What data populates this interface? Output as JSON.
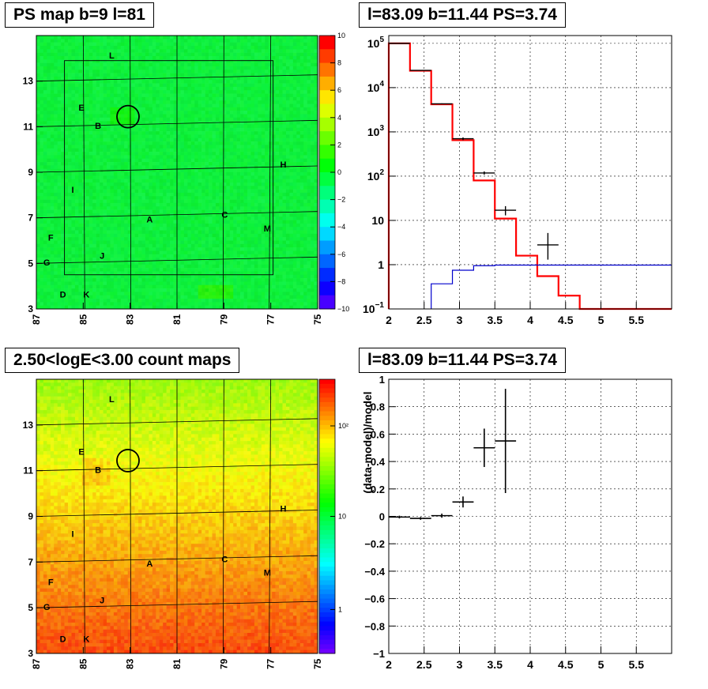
{
  "panels": {
    "p1_title": "PS map b=9 l=81",
    "p2_title": "l=83.09 b=11.44 PS=3.74",
    "p3_title": "2.50<logE<3.00 count maps",
    "p4_title": "l=83.09 b=11.44 PS=3.74"
  },
  "chart_data": [
    {
      "type": "heatmap",
      "title": "PS map b=9 l=81",
      "x_ticks": [
        "87",
        "85",
        "83",
        "81",
        "79",
        "77",
        "75"
      ],
      "y_ticks": [
        "3",
        "5",
        "7",
        "9",
        "11",
        "13"
      ],
      "xlim": [
        87,
        75
      ],
      "ylim": [
        3,
        15
      ],
      "colorbar_ticks": [
        "10",
        "8",
        "6",
        "4",
        "2",
        "0",
        "−2",
        "−4",
        "−6",
        "−8",
        "−10"
      ],
      "colorbar_range": [
        -10,
        10
      ],
      "typical_value": 0,
      "grid": true,
      "labels": [
        {
          "text": "L",
          "l": 83.9,
          "b": 14.0
        },
        {
          "text": "E",
          "l": 85.2,
          "b": 11.7
        },
        {
          "text": "B",
          "l": 84.5,
          "b": 10.9
        },
        {
          "text": "H",
          "l": 76.6,
          "b": 9.2
        },
        {
          "text": "I",
          "l": 85.5,
          "b": 8.1
        },
        {
          "text": "C",
          "l": 79.1,
          "b": 7.0
        },
        {
          "text": "A",
          "l": 82.3,
          "b": 6.8
        },
        {
          "text": "M",
          "l": 77.3,
          "b": 6.4
        },
        {
          "text": "F",
          "l": 86.5,
          "b": 6.0
        },
        {
          "text": "J",
          "l": 84.3,
          "b": 5.2
        },
        {
          "text": "G",
          "l": 86.7,
          "b": 4.9
        },
        {
          "text": "D",
          "l": 86.0,
          "b": 3.5
        },
        {
          "text": "K",
          "l": 85.0,
          "b": 3.5
        }
      ],
      "source_circle": {
        "l": 83.09,
        "b": 11.44
      }
    },
    {
      "type": "line",
      "title": "l=83.09 b=11.44 PS=3.74",
      "x_ticks": [
        "2",
        "2.5",
        "3",
        "3.5",
        "4",
        "4.5",
        "5",
        "5.5"
      ],
      "y_ticks": [
        "10^-1",
        "1",
        "10",
        "10^2",
        "10^3",
        "10^4",
        "10^5"
      ],
      "xlim": [
        2,
        6
      ],
      "ylim": [
        0.1,
        150000
      ],
      "yscale": "log",
      "grid": true,
      "series": [
        {
          "color": "#ff0000",
          "x": [
            2,
            2.3,
            2.6,
            2.9,
            3.2,
            3.5,
            3.8,
            4.1,
            4.4,
            4.7
          ],
          "values": [
            100000,
            24000,
            4200,
            650,
            80,
            11,
            1.6,
            0.55,
            0.2,
            0.1
          ],
          "step_end": 6
        },
        {
          "color": "#0000cc",
          "x": [
            2.6,
            2.9,
            3.2,
            3.5
          ],
          "values": [
            0.37,
            0.75,
            0.95,
            0.98
          ],
          "step_end": 6
        },
        {
          "color": "#000000",
          "points": [
            {
              "x": 2.15,
              "y": 100000,
              "xerr": 0.15,
              "yerr_lo": 98000,
              "yerr_hi": 102000
            },
            {
              "x": 2.45,
              "y": 24500,
              "xerr": 0.15,
              "yerr_lo": 24000,
              "yerr_hi": 25000
            },
            {
              "x": 2.75,
              "y": 4300,
              "xerr": 0.15,
              "yerr_lo": 4200,
              "yerr_hi": 4400
            },
            {
              "x": 3.05,
              "y": 700,
              "xerr": 0.15,
              "yerr_lo": 650,
              "yerr_hi": 750
            },
            {
              "x": 3.35,
              "y": 118,
              "xerr": 0.15,
              "yerr_lo": 108,
              "yerr_hi": 128
            },
            {
              "x": 3.65,
              "y": 17,
              "xerr": 0.15,
              "yerr_lo": 13,
              "yerr_hi": 21
            },
            {
              "x": 4.25,
              "y": 2.8,
              "xerr": 0.15,
              "yerr_lo": 1.3,
              "yerr_hi": 5.2
            }
          ]
        }
      ]
    },
    {
      "type": "heatmap",
      "title": "2.50<logE<3.00 count maps",
      "x_ticks": [
        "87",
        "85",
        "83",
        "81",
        "79",
        "77",
        "75"
      ],
      "y_ticks": [
        "3",
        "5",
        "7",
        "9",
        "11",
        "13"
      ],
      "xlim": [
        87,
        75
      ],
      "ylim": [
        3,
        15
      ],
      "colorbar_ticks": [
        "10²",
        "10",
        "1"
      ],
      "colorbar_scale": "log",
      "grid": true,
      "labels": [
        {
          "text": "L",
          "l": 83.9,
          "b": 14.0
        },
        {
          "text": "E",
          "l": 85.2,
          "b": 11.7
        },
        {
          "text": "B",
          "l": 84.5,
          "b": 10.9
        },
        {
          "text": "H",
          "l": 76.6,
          "b": 9.2
        },
        {
          "text": "I",
          "l": 85.5,
          "b": 8.1
        },
        {
          "text": "C",
          "l": 79.1,
          "b": 7.0
        },
        {
          "text": "A",
          "l": 82.3,
          "b": 6.8
        },
        {
          "text": "M",
          "l": 77.3,
          "b": 6.4
        },
        {
          "text": "F",
          "l": 86.5,
          "b": 6.0
        },
        {
          "text": "J",
          "l": 84.3,
          "b": 5.2
        },
        {
          "text": "G",
          "l": 86.7,
          "b": 4.9
        },
        {
          "text": "D",
          "l": 86.0,
          "b": 3.5
        },
        {
          "text": "K",
          "l": 85.0,
          "b": 3.5
        }
      ],
      "source_circle": {
        "l": 83.09,
        "b": 11.44
      }
    },
    {
      "type": "scatter",
      "title": "l=83.09 b=11.44 PS=3.74",
      "ylabel": "(data-model)/model",
      "x_ticks": [
        "2",
        "2.5",
        "3",
        "3.5",
        "4",
        "4.5",
        "5",
        "5.5"
      ],
      "y_ticks": [
        "−1",
        "−0.8",
        "−0.6",
        "−0.4",
        "−0.2",
        "0",
        "0.2",
        "0.4",
        "0.6",
        "0.8",
        "1"
      ],
      "xlim": [
        2,
        6
      ],
      "ylim": [
        -1,
        1
      ],
      "grid": true,
      "points": [
        {
          "x": 2.15,
          "y": -0.005,
          "xerr": 0.15,
          "yerr": 0.01
        },
        {
          "x": 2.45,
          "y": -0.015,
          "xerr": 0.15,
          "yerr": 0.01
        },
        {
          "x": 2.75,
          "y": 0.005,
          "xerr": 0.15,
          "yerr": 0.015
        },
        {
          "x": 3.05,
          "y": 0.105,
          "xerr": 0.15,
          "yerr": 0.04
        },
        {
          "x": 3.35,
          "y": 0.5,
          "xerr": 0.15,
          "yerr": 0.14
        },
        {
          "x": 3.65,
          "y": 0.55,
          "xerr": 0.15,
          "yerr": 0.38
        }
      ]
    }
  ]
}
